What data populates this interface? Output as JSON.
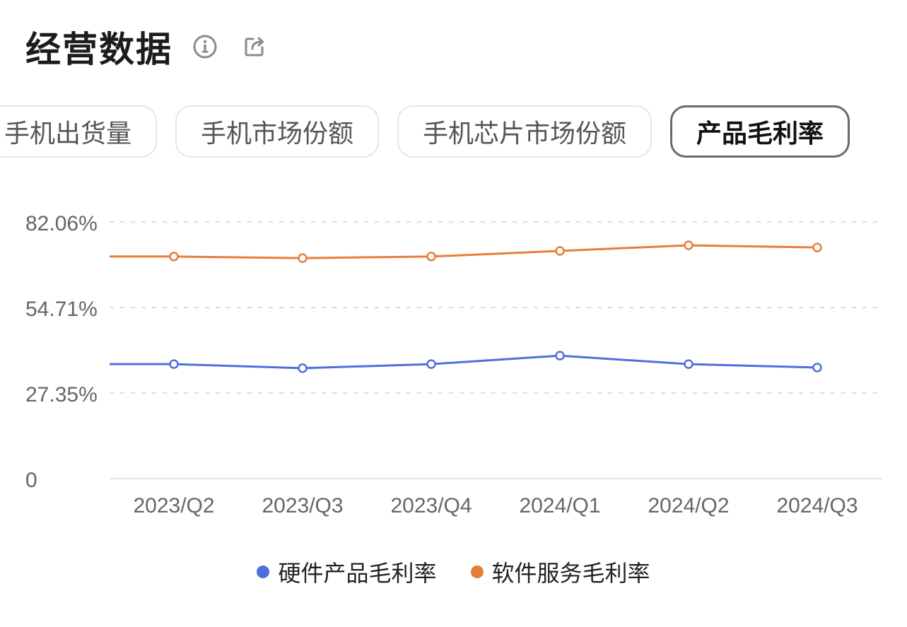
{
  "header": {
    "title": "经营数据",
    "info_icon": "info-circle-icon",
    "share_icon": "share-export-icon"
  },
  "tabs": [
    {
      "label": "手机出货量",
      "active": false
    },
    {
      "label": "手机市场份额",
      "active": false
    },
    {
      "label": "手机芯片市场份额",
      "active": false
    },
    {
      "label": "产品毛利率",
      "active": true
    }
  ],
  "colors": {
    "hardware": "#4f6fe0",
    "software": "#e67e3a",
    "grid": "#dddddd",
    "axis_text": "#666666"
  },
  "chart_data": {
    "type": "line",
    "title": "产品毛利率",
    "categories": [
      "2023/Q2",
      "2023/Q3",
      "2023/Q4",
      "2024/Q1",
      "2024/Q2",
      "2024/Q3"
    ],
    "y_ticks": [
      "0",
      "27.35%",
      "54.71%",
      "82.06%"
    ],
    "y_tick_values": [
      0,
      27.35,
      54.71,
      82.06
    ],
    "ylim": [
      0,
      82.06
    ],
    "grid": true,
    "legend_position": "bottom",
    "series": [
      {
        "name": "硬件产品毛利率",
        "color": "#4f6fe0",
        "values": [
          36.6,
          35.3,
          36.6,
          39.3,
          36.6,
          35.5
        ]
      },
      {
        "name": "软件服务毛利率",
        "color": "#e67e3a",
        "values": [
          71.0,
          70.5,
          71.0,
          72.8,
          74.6,
          73.9
        ]
      }
    ],
    "xlabel": "",
    "ylabel": ""
  }
}
